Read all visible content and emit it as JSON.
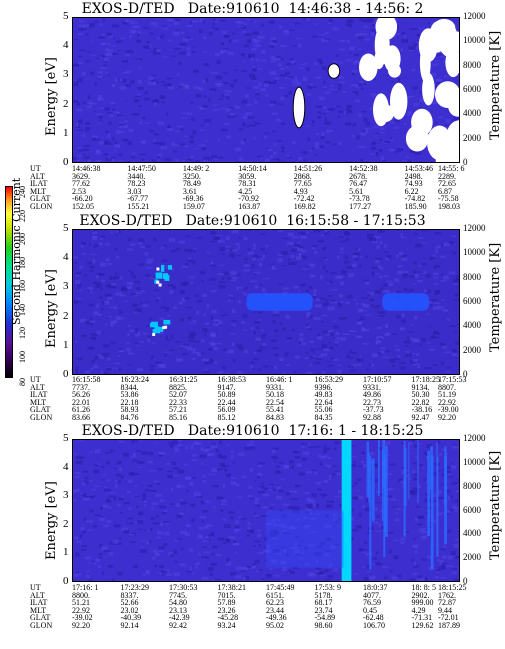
{
  "colorbar": {
    "label": "Second Harmonic Current",
    "ticks": [
      "240",
      "220",
      "200",
      "180",
      "160",
      "140",
      "120",
      "100",
      "80"
    ]
  },
  "panels": [
    {
      "title": "EXOS-D/TED   Date:910610  14:46:38 - 14:56: 2",
      "energy_label": "Energy [eV]",
      "temp_label": "Temperature [K]",
      "energy_ticks": [
        "5",
        "4",
        "3",
        "2",
        "1",
        "0"
      ],
      "temp_ticks": [
        "12000",
        "10000",
        "8000",
        "6000",
        "4000",
        "2000",
        "0"
      ],
      "row_labels": [
        "UT",
        "ALT",
        "ILAT",
        "MLT",
        "GLAT",
        "GLON"
      ],
      "columns": [
        [
          "14:46:38",
          "3629.",
          "77.62",
          "2.53",
          "-66.20",
          "152.05"
        ],
        [
          "14:47:50",
          "3440.",
          "78.23",
          "3.03",
          "-67.77",
          "155.21"
        ],
        [
          "14:49: 2",
          "3250.",
          "78.49",
          "3.61",
          "-69.36",
          "159.07"
        ],
        [
          "14:50:14",
          "3059.",
          "78.31",
          "4.25",
          "-70.92",
          "163.87"
        ],
        [
          "14:51:26",
          "2868.",
          "77.65",
          "4.93",
          "-72.42",
          "169.82"
        ],
        [
          "14:52:38",
          "2678.",
          "76.47",
          "5.61",
          "-73.78",
          "177.27"
        ],
        [
          "14:53:46",
          "2498.",
          "74.93",
          "6.22",
          "-74.82",
          "185.90"
        ],
        [
          "14:55: 6",
          "2289.",
          "72.65",
          "6.87",
          "-75.58",
          "198.03"
        ]
      ]
    },
    {
      "title": "EXOS-D/TED   Date:910610  16:15:58 - 17:15:53",
      "energy_label": "Energy [eV]",
      "temp_label": "Temperature [K]",
      "energy_ticks": [
        "5",
        "4",
        "3",
        "2",
        "1",
        "0"
      ],
      "temp_ticks": [
        "12000",
        "10000",
        "8000",
        "6000",
        "4000",
        "2000",
        "0"
      ],
      "row_labels": [
        "UT",
        "ALT",
        "ILAT",
        "MLT",
        "GLAT",
        "GLON"
      ],
      "columns": [
        [
          "16:15:58",
          "7737.",
          "56.26",
          "22.01",
          "61.26",
          "83.66"
        ],
        [
          "16:23:24",
          "8344.",
          "53.86",
          "22.18",
          "58.93",
          "84.76"
        ],
        [
          "16:31:25",
          "8825.",
          "52.07",
          "22.33",
          "57.21",
          "85.16"
        ],
        [
          "16:38:53",
          "9147.",
          "50.89",
          "22.44",
          "56.09",
          "85.12"
        ],
        [
          "16:46: 1",
          "9331.",
          "50.18",
          "22.54",
          "55.41",
          "84.83"
        ],
        [
          "16:53:29",
          "9396.",
          "49.83",
          "22.64",
          "55.06",
          "84.35"
        ],
        [
          "17:10:57",
          "9331.",
          "49.86",
          "22.73",
          "-37.73",
          "92.88"
        ],
        [
          "17:18:25",
          "9134.",
          "50.30",
          "22.82",
          "-38.16",
          "92.47"
        ],
        [
          "17:15:53",
          "8807.",
          "51.19",
          "22.92",
          "-39.00",
          "92.20"
        ]
      ]
    },
    {
      "title": "EXOS-D/TED   Date:910610  17:16: 1 - 18:15:25",
      "energy_label": "Energy [eV]",
      "temp_label": "Temperature [K]",
      "energy_ticks": [
        "5",
        "4",
        "3",
        "2",
        "1",
        "0"
      ],
      "temp_ticks": [
        "12000",
        "10000",
        "8000",
        "6000",
        "4000",
        "2000",
        "0"
      ],
      "row_labels": [
        "UT",
        "ALT",
        "ILAT",
        "MLT",
        "GLAT",
        "GLON"
      ],
      "columns": [
        [
          "17:16: 1",
          "8800.",
          "51.21",
          "22.92",
          "-39.02",
          "92.20"
        ],
        [
          "17:23:29",
          "8337.",
          "52.66",
          "23.02",
          "-40.39",
          "92.14"
        ],
        [
          "17:30:53",
          "7745.",
          "54.80",
          "23.13",
          "-42.39",
          "92.42"
        ],
        [
          "17:38:21",
          "7015.",
          "57.89",
          "23.26",
          "-45.28",
          "93.24"
        ],
        [
          "17:45:49",
          "6151.",
          "62.23",
          "23.44",
          "-49.36",
          "95.02"
        ],
        [
          "17:53: 9",
          "5178.",
          "68.17",
          "23.74",
          "-54.89",
          "98.60"
        ],
        [
          "18:0:37",
          "4077.",
          "76.59",
          "0.45",
          "-62.48",
          "106.70"
        ],
        [
          "18: 8: 5",
          "2902.",
          "999.00",
          "4.29",
          "-71.31",
          "129.62"
        ],
        [
          "18:15:25",
          "1762.",
          "72.87",
          "9.44",
          "-72.01",
          "187.89"
        ]
      ]
    }
  ],
  "chart_data": [
    {
      "type": "heatmap",
      "title": "EXOS-D/TED   Date:910610  14:46:38 - 14:56: 2",
      "ylabel": "Energy [eV]",
      "y2label": "Temperature [K]",
      "ylim": [
        0,
        5
      ],
      "y2lim": [
        0,
        12000
      ],
      "x_ticks": [
        "14:46:38",
        "14:47:50",
        "14:49: 2",
        "14:50:14",
        "14:51:26",
        "14:52:38",
        "14:53:46",
        "14:55: 6"
      ],
      "background_color": "#3d2ed0",
      "features": [
        {
          "kind": "saturated_region",
          "x_frac": [
            0.76,
            0.92
          ],
          "energy": [
            0.6,
            4.8
          ],
          "color": "#ffffff"
        },
        {
          "kind": "saturated_region",
          "x_frac": [
            0.94,
            1.0
          ],
          "energy": [
            0.0,
            5.0
          ],
          "color": "#ffffff"
        },
        {
          "kind": "saturated_spot",
          "x_frac": [
            0.57,
            0.6
          ],
          "energy": [
            1.2,
            2.6
          ],
          "color": "#ffffff"
        },
        {
          "kind": "saturated_spot",
          "x_frac": [
            0.66,
            0.69
          ],
          "energy": [
            2.9,
            3.4
          ],
          "color": "#ffffff"
        }
      ]
    },
    {
      "type": "heatmap",
      "title": "EXOS-D/TED   Date:910610  16:15:58 - 17:15:53",
      "ylabel": "Energy [eV]",
      "y2label": "Temperature [K]",
      "ylim": [
        0,
        5
      ],
      "y2lim": [
        0,
        12000
      ],
      "x_ticks": [
        "16:15:58",
        "16:23:24",
        "16:31:25",
        "16:38:53",
        "16:46: 1",
        "16:53:29",
        "17:10:57",
        "17:18:25",
        "17:15:53"
      ],
      "background_color": "#3a2cc8",
      "features": [
        {
          "kind": "band",
          "x_frac": [
            0.45,
            0.62
          ],
          "energy": [
            2.2,
            2.8
          ],
          "color": "#2255ff"
        },
        {
          "kind": "band",
          "x_frac": [
            0.8,
            0.92
          ],
          "energy": [
            2.2,
            2.8
          ],
          "color": "#2255ff"
        },
        {
          "kind": "spot_cluster",
          "x_frac": [
            0.19,
            0.25
          ],
          "energy": [
            3.0,
            3.8
          ],
          "color": "#00c8ff"
        },
        {
          "kind": "spot_cluster",
          "x_frac": [
            0.19,
            0.25
          ],
          "energy": [
            1.4,
            1.9
          ],
          "color": "#00c8ff"
        }
      ]
    },
    {
      "type": "heatmap",
      "title": "EXOS-D/TED   Date:910610  17:16: 1 - 18:15:25",
      "ylabel": "Energy [eV]",
      "y2label": "Temperature [K]",
      "ylim": [
        0,
        5
      ],
      "y2lim": [
        0,
        12000
      ],
      "x_ticks": [
        "17:16: 1",
        "17:23:29",
        "17:30:53",
        "17:38:21",
        "17:45:49",
        "17:53: 9",
        "18:0:37",
        "18: 8: 5",
        "18:15:25"
      ],
      "background_color": "#3d2ed0",
      "features": [
        {
          "kind": "vertical_stripe",
          "x_frac": [
            0.695,
            0.72
          ],
          "energy": [
            0.0,
            5.0
          ],
          "color": "#00e0ff"
        },
        {
          "kind": "vertical_stripes",
          "x_frac": [
            0.75,
            1.0
          ],
          "energy": [
            0.5,
            5.0
          ],
          "color": "#2a6cff"
        },
        {
          "kind": "patch",
          "x_frac": [
            0.5,
            0.7
          ],
          "energy": [
            0.5,
            2.5
          ],
          "color": "#3050ff"
        }
      ]
    }
  ]
}
